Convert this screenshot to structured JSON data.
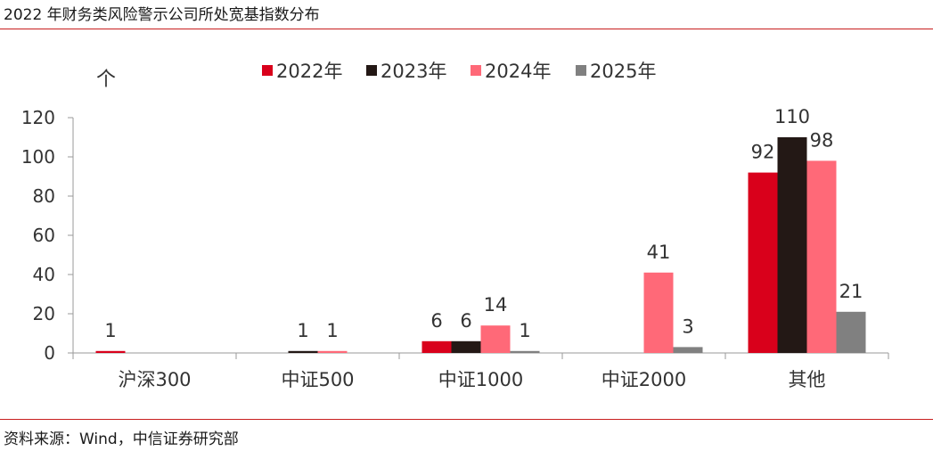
{
  "header": {
    "title": "2022 年财务类风险警示公司所处宽基指数分布"
  },
  "footer": {
    "source": "资料来源：Wind，中信证券研究部"
  },
  "colors": {
    "rule": "#c81e1e",
    "axis": "#9a9a9a"
  },
  "chart_data": {
    "type": "bar",
    "title": "",
    "unit_label": "个",
    "xlabel": "",
    "ylabel": "",
    "categories": [
      "沪深300",
      "中证500",
      "中证1000",
      "中证2000",
      "其他"
    ],
    "ylim": [
      0,
      120
    ],
    "yticks": [
      0,
      20,
      40,
      60,
      80,
      100,
      120
    ],
    "grid": false,
    "legend_position": "top",
    "series": [
      {
        "name": "2022年",
        "color": "#d9001b",
        "values": [
          1,
          null,
          6,
          null,
          92
        ]
      },
      {
        "name": "2023年",
        "color": "#231815",
        "values": [
          null,
          1,
          6,
          null,
          110
        ]
      },
      {
        "name": "2024年",
        "color": "#ff6978",
        "values": [
          null,
          1,
          14,
          41,
          98
        ]
      },
      {
        "name": "2025年",
        "color": "#808080",
        "values": [
          null,
          null,
          1,
          3,
          21
        ]
      }
    ]
  }
}
